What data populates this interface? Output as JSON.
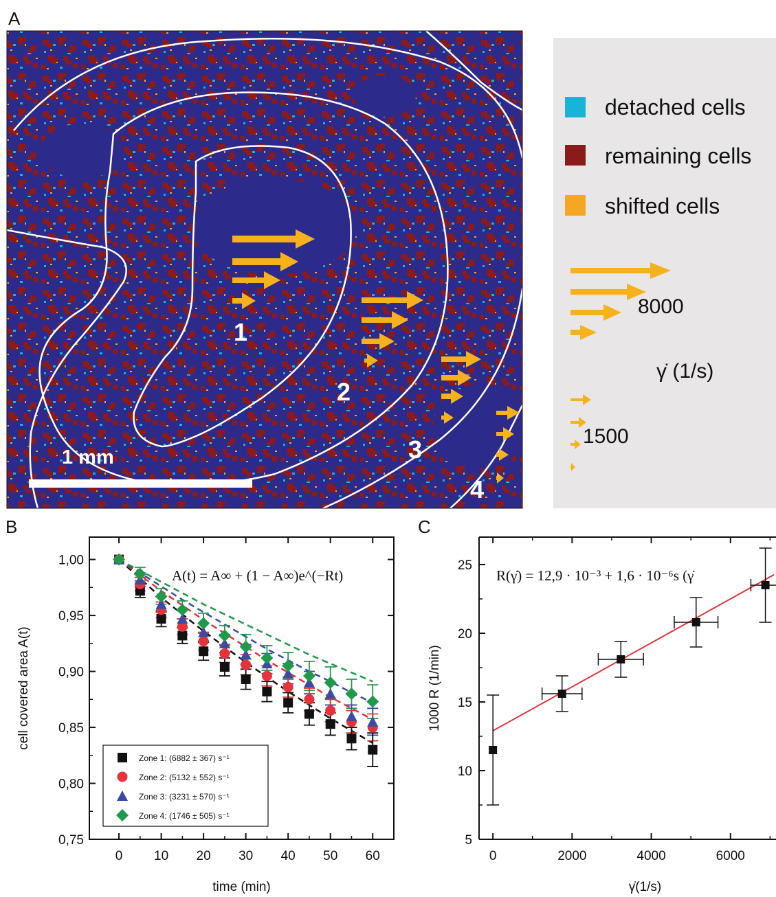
{
  "panels": {
    "A": {
      "letter": "A",
      "scale_bar_label": "1 mm",
      "zone_labels": [
        "1",
        "2",
        "3",
        "4"
      ],
      "legend": [
        {
          "label": "detached cells",
          "color": "#17b4d8"
        },
        {
          "label": "remaining cells",
          "color": "#8b1a1a"
        },
        {
          "label": "shifted cells",
          "color": "#f5a623"
        }
      ],
      "shear_max_label": "8000",
      "shear_min_label": "1500",
      "shear_unit_label": "γ̇ (1/s)",
      "colors": {
        "background": "#2c2a8a",
        "arrows": "#f7b21b",
        "contours": "#ffffff",
        "legend_box": "#e8e6e6"
      }
    },
    "B": {
      "letter": "B"
    },
    "C": {
      "letter": "C"
    }
  },
  "chart_data": [
    {
      "panel": "B",
      "type": "scatter",
      "xlabel": "time (min)",
      "ylabel": "cell covered area A(t)",
      "xlim": [
        -7,
        65
      ],
      "ylim": [
        0.75,
        1.02
      ],
      "xticks": [
        "0",
        "10",
        "20",
        "30",
        "40",
        "50",
        "60"
      ],
      "yticks": [
        "0,75",
        "0,80",
        "0,85",
        "0,90",
        "0,95",
        "1,00"
      ],
      "annotation": "A(t) = A∞ + (1 − A∞)e^(−Rt)",
      "x": [
        0,
        5,
        10,
        15,
        20,
        25,
        30,
        35,
        40,
        45,
        50,
        55,
        60
      ],
      "series": [
        {
          "name": "Zone 1: (6882 ± 367) s⁻¹",
          "marker": "square",
          "color": "#111111",
          "values": [
            1.0,
            0.972,
            0.947,
            0.932,
            0.918,
            0.904,
            0.893,
            0.882,
            0.872,
            0.862,
            0.853,
            0.84,
            0.83
          ],
          "errors": [
            0,
            0.006,
            0.007,
            0.007,
            0.008,
            0.008,
            0.009,
            0.009,
            0.009,
            0.01,
            0.01,
            0.01,
            0.015
          ],
          "fit": [
            1.0,
            0.983,
            0.966,
            0.951,
            0.936,
            0.922,
            0.908,
            0.895,
            0.882,
            0.87,
            0.858,
            0.847,
            0.836
          ]
        },
        {
          "name": "Zone 2: (5132 ± 552) s⁻¹",
          "marker": "circle",
          "color": "#e8323a",
          "values": [
            1.0,
            0.978,
            0.955,
            0.94,
            0.927,
            0.916,
            0.906,
            0.896,
            0.886,
            0.875,
            0.865,
            0.855,
            0.85
          ],
          "errors": [
            0,
            0.006,
            0.007,
            0.007,
            0.008,
            0.008,
            0.009,
            0.009,
            0.009,
            0.01,
            0.01,
            0.01,
            0.012
          ],
          "fit": [
            1.0,
            0.986,
            0.972,
            0.959,
            0.946,
            0.934,
            0.922,
            0.91,
            0.899,
            0.888,
            0.877,
            0.867,
            0.857
          ]
        },
        {
          "name": "Zone 3: (3231 ± 570) s⁻¹",
          "marker": "triangle",
          "color": "#3a4aa6",
          "values": [
            1.0,
            0.982,
            0.96,
            0.947,
            0.935,
            0.925,
            0.915,
            0.907,
            0.898,
            0.89,
            0.88,
            0.86,
            0.855
          ],
          "errors": [
            0,
            0.006,
            0.007,
            0.008,
            0.008,
            0.008,
            0.009,
            0.009,
            0.009,
            0.01,
            0.01,
            0.01,
            0.012
          ],
          "fit": [
            1.0,
            0.988,
            0.976,
            0.964,
            0.953,
            0.942,
            0.931,
            0.92,
            0.91,
            0.9,
            0.891,
            0.881,
            0.872
          ]
        },
        {
          "name": "Zone 4: (1746 ± 505) s⁻¹",
          "marker": "diamond",
          "color": "#1f9a4a",
          "values": [
            1.0,
            0.987,
            0.967,
            0.955,
            0.943,
            0.932,
            0.922,
            0.912,
            0.905,
            0.896,
            0.89,
            0.88,
            0.873
          ],
          "errors": [
            0,
            0.006,
            0.007,
            0.008,
            0.009,
            0.009,
            0.011,
            0.011,
            0.012,
            0.013,
            0.014,
            0.013,
            0.015
          ],
          "fit": [
            1.0,
            0.99,
            0.98,
            0.97,
            0.96,
            0.951,
            0.942,
            0.933,
            0.924,
            0.915,
            0.907,
            0.899,
            0.891
          ]
        }
      ]
    },
    {
      "panel": "C",
      "type": "scatter",
      "xlabel": "γ̇(1/s)",
      "ylabel": "1000 R (1/min)",
      "xlim": [
        -350,
        7150
      ],
      "ylim": [
        5,
        27
      ],
      "xticks": [
        "0",
        "2000",
        "4000",
        "6000"
      ],
      "yticks": [
        "5",
        "10",
        "15",
        "20",
        "25"
      ],
      "annotation": "R(γ̇) = 12,9 · 10⁻³ + 1,6 · 10⁻⁶s (γ̇",
      "fit_line": {
        "intercept": 12.9,
        "slope": 0.0016,
        "color": "#e8323a"
      },
      "points": [
        {
          "x": 0,
          "y": 11.5,
          "xerr": 0,
          "yerr": 4.0
        },
        {
          "x": 1746,
          "y": 15.6,
          "xerr": 505,
          "yerr": 1.3
        },
        {
          "x": 3231,
          "y": 18.1,
          "xerr": 570,
          "yerr": 1.3
        },
        {
          "x": 5132,
          "y": 20.8,
          "xerr": 552,
          "yerr": 1.8
        },
        {
          "x": 6882,
          "y": 23.5,
          "xerr": 367,
          "yerr": 2.7
        }
      ]
    }
  ]
}
